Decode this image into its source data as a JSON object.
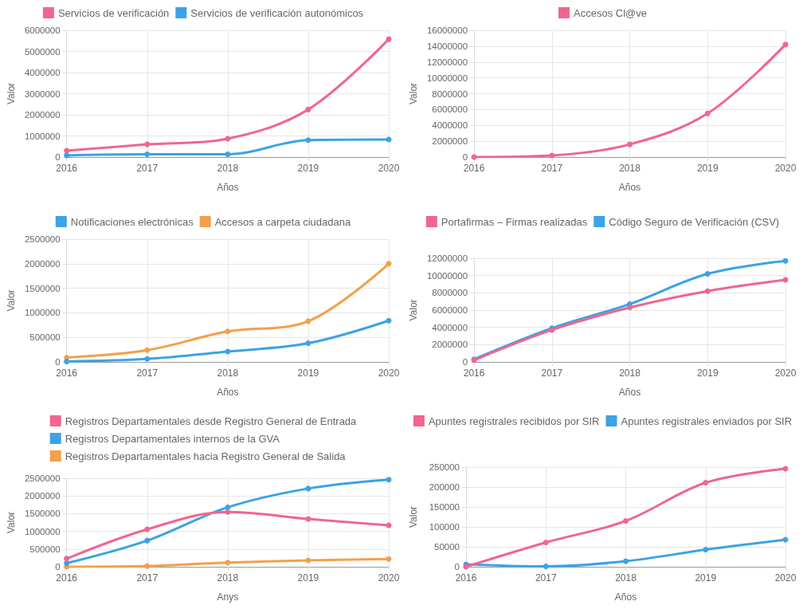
{
  "chart_data": [
    {
      "type": "line",
      "xlabel": "Años",
      "ylabel": "Valor",
      "categories": [
        "2016",
        "2017",
        "2018",
        "2019",
        "2020"
      ],
      "ylim": [
        0,
        6000000
      ],
      "yticks": [
        0,
        1000000,
        2000000,
        3000000,
        4000000,
        5000000,
        6000000
      ],
      "grid": true,
      "legend": "top",
      "marker": "circle",
      "series": [
        {
          "name": "Servicios de verificación",
          "color": "#f0668e",
          "values": [
            300000,
            600000,
            870000,
            2250000,
            5580000
          ]
        },
        {
          "name": "Servicios de verificación autonómicos",
          "color": "#3ba3e6",
          "values": [
            80000,
            130000,
            130000,
            800000,
            830000
          ]
        }
      ]
    },
    {
      "type": "line",
      "xlabel": "Años",
      "ylabel": "Valor",
      "categories": [
        "2016",
        "2017",
        "2018",
        "2019",
        "2020"
      ],
      "ylim": [
        0,
        16000000
      ],
      "yticks": [
        0,
        2000000,
        4000000,
        6000000,
        8000000,
        10000000,
        12000000,
        14000000,
        16000000
      ],
      "grid": true,
      "legend": "top",
      "marker": "circle",
      "series": [
        {
          "name": "Accesos Cl@ve",
          "color": "#f0668e",
          "values": [
            0,
            200000,
            1600000,
            5500000,
            14200000
          ]
        }
      ]
    },
    {
      "type": "line",
      "xlabel": "Años",
      "ylabel": "Valor",
      "categories": [
        "2016",
        "2017",
        "2018",
        "2019",
        "2020"
      ],
      "ylim": [
        0,
        2500000
      ],
      "yticks": [
        0,
        500000,
        1000000,
        1500000,
        2000000,
        2500000
      ],
      "grid": true,
      "legend": "top",
      "marker": "circle",
      "series": [
        {
          "name": "Notificaciones electrónicas",
          "color": "#3ba3e6",
          "values": [
            10000,
            60000,
            210000,
            380000,
            840000
          ]
        },
        {
          "name": "Accesos a carpeta ciudadana",
          "color": "#f4a04a",
          "values": [
            90000,
            240000,
            620000,
            830000,
            2000000
          ]
        }
      ]
    },
    {
      "type": "line",
      "xlabel": "Años",
      "ylabel": "Valor",
      "categories": [
        "2016",
        "2017",
        "2018",
        "2019",
        "2020"
      ],
      "ylim": [
        0,
        12000000
      ],
      "yticks": [
        0,
        2000000,
        4000000,
        6000000,
        8000000,
        10000000,
        12000000
      ],
      "grid": true,
      "legend": "top",
      "marker": "circle",
      "series": [
        {
          "name": "Portafirmas – Firmas realizadas",
          "color": "#f0668e",
          "values": [
            200000,
            3700000,
            6300000,
            8200000,
            9500000
          ]
        },
        {
          "name": "Código Seguro de Verificación (CSV)",
          "color": "#3ba3e6",
          "values": [
            300000,
            3900000,
            6700000,
            10200000,
            11700000
          ]
        }
      ]
    },
    {
      "type": "line",
      "xlabel": "Anys",
      "ylabel": "Valor",
      "categories": [
        "2016",
        "2017",
        "2018",
        "2019",
        "2020"
      ],
      "ylim": [
        0,
        2500000
      ],
      "yticks": [
        0,
        500000,
        1000000,
        1500000,
        2000000,
        2500000
      ],
      "grid": true,
      "legend": "top",
      "marker": "circle",
      "series": [
        {
          "name": "Registros Departamentales desde Registro General de Entrada",
          "color": "#f0668e",
          "values": [
            230000,
            1060000,
            1550000,
            1350000,
            1170000
          ]
        },
        {
          "name": "Registros Departamentales internos de la GVA",
          "color": "#3ba3e6",
          "values": [
            100000,
            740000,
            1680000,
            2210000,
            2460000
          ]
        },
        {
          "name": "Registros Departamentales hacia Registro General de Salida",
          "color": "#f4a04a",
          "values": [
            0,
            20000,
            120000,
            180000,
            220000
          ]
        }
      ]
    },
    {
      "type": "line",
      "xlabel": "Años",
      "ylabel": "Valor",
      "categories": [
        "2016",
        "2017",
        "2018",
        "2019",
        "2020"
      ],
      "ylim": [
        0,
        250000
      ],
      "yticks": [
        0,
        50000,
        100000,
        150000,
        200000,
        250000
      ],
      "grid": true,
      "legend": "top",
      "marker": "circle",
      "series": [
        {
          "name": "Apuntes registrales recibidos por SIR",
          "color": "#f0668e",
          "values": [
            0,
            61000,
            115000,
            211000,
            246000
          ]
        },
        {
          "name": "Apuntes registrales enviados por SIR",
          "color": "#3ba3e6",
          "values": [
            6000,
            1000,
            14000,
            43000,
            68000
          ]
        }
      ]
    }
  ]
}
